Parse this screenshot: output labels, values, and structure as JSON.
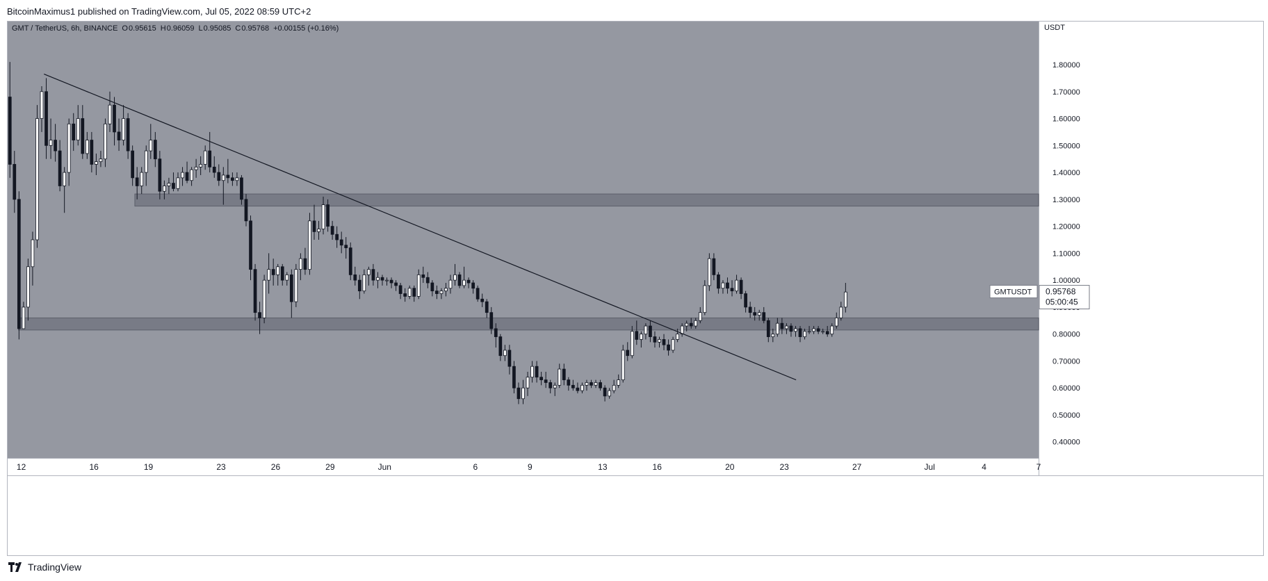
{
  "header": {
    "publisher_text": "BitcoinMaximus1 published on TradingView.com, Jul 05, 2022 08:59 UTC+2"
  },
  "footer": {
    "brand": "TradingView"
  },
  "colors": {
    "plot_bg": "#9598a1",
    "axis_bg": "#ffffff",
    "zone_fill": "#787b86",
    "candle_up_fill": "#ffffff",
    "candle_down_fill": "#131722",
    "wick": "#131722",
    "trendline": "#131722"
  },
  "chart_data": {
    "type": "candlestick",
    "symbol_info": "GMT / TetherUS, 6h, BINANCE",
    "ohlc_readout": {
      "O": "0.95615",
      "H": "0.96059",
      "L": "0.95085",
      "C": "0.95768",
      "change": "+0.00155 (+0.16%)"
    },
    "y_axis_unit": "USDT",
    "ylim": [
      0.34,
      1.96
    ],
    "y_ticks": [
      {
        "value": 1.8,
        "label": "1.80000"
      },
      {
        "value": 1.7,
        "label": "1.70000"
      },
      {
        "value": 1.6,
        "label": "1.60000"
      },
      {
        "value": 1.5,
        "label": "1.50000"
      },
      {
        "value": 1.4,
        "label": "1.40000"
      },
      {
        "value": 1.3,
        "label": "1.30000"
      },
      {
        "value": 1.2,
        "label": "1.20000"
      },
      {
        "value": 1.1,
        "label": "1.10000"
      },
      {
        "value": 1.0,
        "label": "1.00000"
      },
      {
        "value": 0.9,
        "label": "0.90000"
      },
      {
        "value": 0.8,
        "label": "0.80000"
      },
      {
        "value": 0.7,
        "label": "0.70000"
      },
      {
        "value": 0.6,
        "label": "0.60000"
      },
      {
        "value": 0.5,
        "label": "0.50000"
      },
      {
        "value": 0.4,
        "label": "0.40000"
      }
    ],
    "xlim_days": [
      0,
      56.75
    ],
    "x_ticks": [
      {
        "day": 0.75,
        "label": "12"
      },
      {
        "day": 4.75,
        "label": "16"
      },
      {
        "day": 7.75,
        "label": "19"
      },
      {
        "day": 11.75,
        "label": "23"
      },
      {
        "day": 14.75,
        "label": "26"
      },
      {
        "day": 17.75,
        "label": "29"
      },
      {
        "day": 20.75,
        "label": "Jun"
      },
      {
        "day": 25.75,
        "label": "6"
      },
      {
        "day": 28.75,
        "label": "9"
      },
      {
        "day": 32.75,
        "label": "13"
      },
      {
        "day": 35.75,
        "label": "16"
      },
      {
        "day": 39.75,
        "label": "20"
      },
      {
        "day": 42.75,
        "label": "23"
      },
      {
        "day": 46.75,
        "label": "27"
      },
      {
        "day": 50.75,
        "label": "Jul"
      },
      {
        "day": 53.75,
        "label": "4"
      },
      {
        "day": 56.75,
        "label": "7"
      }
    ],
    "last_price": {
      "label": "GMTUSDT",
      "value": "0.95768",
      "countdown": "05:00:45"
    },
    "zones": [
      {
        "day_start": 7.0,
        "day_end": 56.75,
        "low": 1.275,
        "high": 1.32
      },
      {
        "day_start": 0.6,
        "day_end": 56.75,
        "low": 0.815,
        "high": 0.86
      }
    ],
    "trendline": [
      {
        "day": 2.0,
        "price": 1.765
      },
      {
        "day": 43.4,
        "price": 0.63
      }
    ],
    "candles": [
      [
        0,
        1.68,
        1.81,
        1.38,
        1.43
      ],
      [
        1,
        1.43,
        1.48,
        1.25,
        1.3
      ],
      [
        2,
        1.3,
        1.33,
        0.78,
        0.82
      ],
      [
        3,
        0.82,
        0.92,
        0.82,
        0.9
      ],
      [
        4,
        0.9,
        1.08,
        0.85,
        1.05
      ],
      [
        5,
        1.05,
        1.18,
        0.98,
        1.15
      ],
      [
        6,
        1.15,
        1.65,
        1.12,
        1.6
      ],
      [
        7,
        1.6,
        1.72,
        1.55,
        1.7
      ],
      [
        8,
        1.7,
        1.75,
        1.45,
        1.5
      ],
      [
        9,
        1.5,
        1.6,
        1.45,
        1.52
      ],
      [
        10,
        1.52,
        1.58,
        1.44,
        1.48
      ],
      [
        11,
        1.48,
        1.52,
        1.33,
        1.35
      ],
      [
        12,
        1.35,
        1.42,
        1.25,
        1.4
      ],
      [
        13,
        1.4,
        1.6,
        1.35,
        1.58
      ],
      [
        14,
        1.58,
        1.62,
        1.48,
        1.52
      ],
      [
        15,
        1.52,
        1.65,
        1.5,
        1.6
      ],
      [
        16,
        1.6,
        1.65,
        1.45,
        1.47
      ],
      [
        17,
        1.47,
        1.55,
        1.45,
        1.52
      ],
      [
        18,
        1.52,
        1.55,
        1.4,
        1.43
      ],
      [
        19,
        1.43,
        1.47,
        1.39,
        1.44
      ],
      [
        20,
        1.44,
        1.48,
        1.42,
        1.45
      ],
      [
        21,
        1.45,
        1.6,
        1.42,
        1.58
      ],
      [
        22,
        1.58,
        1.7,
        1.55,
        1.65
      ],
      [
        23,
        1.65,
        1.68,
        1.5,
        1.55
      ],
      [
        24,
        1.55,
        1.6,
        1.48,
        1.52
      ],
      [
        25,
        1.52,
        1.65,
        1.5,
        1.6
      ],
      [
        26,
        1.6,
        1.62,
        1.45,
        1.48
      ],
      [
        27,
        1.48,
        1.5,
        1.35,
        1.38
      ],
      [
        28,
        1.38,
        1.42,
        1.3,
        1.35
      ],
      [
        29,
        1.35,
        1.42,
        1.32,
        1.4
      ],
      [
        30,
        1.4,
        1.5,
        1.35,
        1.48
      ],
      [
        31,
        1.48,
        1.58,
        1.45,
        1.52
      ],
      [
        32,
        1.52,
        1.55,
        1.42,
        1.45
      ],
      [
        33,
        1.45,
        1.48,
        1.3,
        1.33
      ],
      [
        34,
        1.33,
        1.37,
        1.3,
        1.35
      ],
      [
        35,
        1.35,
        1.38,
        1.32,
        1.36
      ],
      [
        36,
        1.36,
        1.4,
        1.33,
        1.34
      ],
      [
        37,
        1.34,
        1.4,
        1.33,
        1.38
      ],
      [
        38,
        1.38,
        1.42,
        1.35,
        1.4
      ],
      [
        39,
        1.4,
        1.44,
        1.36,
        1.37
      ],
      [
        40,
        1.37,
        1.42,
        1.35,
        1.41
      ],
      [
        41,
        1.41,
        1.45,
        1.38,
        1.42
      ],
      [
        42,
        1.42,
        1.46,
        1.39,
        1.43
      ],
      [
        43,
        1.43,
        1.5,
        1.41,
        1.48
      ],
      [
        44,
        1.48,
        1.55,
        1.4,
        1.42
      ],
      [
        45,
        1.42,
        1.46,
        1.38,
        1.4
      ],
      [
        46,
        1.4,
        1.43,
        1.35,
        1.37
      ],
      [
        47,
        1.37,
        1.42,
        1.28,
        1.39
      ],
      [
        48,
        1.39,
        1.45,
        1.36,
        1.38
      ],
      [
        49,
        1.38,
        1.4,
        1.35,
        1.37
      ],
      [
        50,
        1.37,
        1.4,
        1.35,
        1.38
      ],
      [
        51,
        1.38,
        1.39,
        1.28,
        1.3
      ],
      [
        52,
        1.3,
        1.32,
        1.2,
        1.22
      ],
      [
        53,
        1.22,
        1.24,
        1.0,
        1.04
      ],
      [
        54,
        1.04,
        1.06,
        0.85,
        0.88
      ],
      [
        55,
        0.88,
        0.92,
        0.8,
        0.86
      ],
      [
        56,
        0.86,
        1.02,
        0.84,
        1.0
      ],
      [
        57,
        1.0,
        1.1,
        0.95,
        1.04
      ],
      [
        58,
        1.04,
        1.08,
        0.98,
        1.02
      ],
      [
        59,
        1.02,
        1.06,
        0.98,
        1.05
      ],
      [
        60,
        1.05,
        1.06,
        0.98,
        1.0
      ],
      [
        61,
        1.0,
        1.03,
        0.98,
        1.02
      ],
      [
        62,
        1.02,
        1.04,
        0.86,
        0.92
      ],
      [
        63,
        0.92,
        1.06,
        0.9,
        1.04
      ],
      [
        64,
        1.04,
        1.1,
        1.0,
        1.08
      ],
      [
        65,
        1.08,
        1.12,
        1.02,
        1.04
      ],
      [
        66,
        1.04,
        1.25,
        1.02,
        1.22
      ],
      [
        67,
        1.22,
        1.28,
        1.15,
        1.18
      ],
      [
        68,
        1.18,
        1.22,
        1.15,
        1.19
      ],
      [
        69,
        1.19,
        1.31,
        1.17,
        1.28
      ],
      [
        70,
        1.28,
        1.3,
        1.18,
        1.2
      ],
      [
        71,
        1.2,
        1.22,
        1.15,
        1.17
      ],
      [
        72,
        1.17,
        1.2,
        1.12,
        1.15
      ],
      [
        73,
        1.15,
        1.18,
        1.1,
        1.13
      ],
      [
        74,
        1.13,
        1.16,
        1.08,
        1.12
      ],
      [
        75,
        1.12,
        1.14,
        1.0,
        1.02
      ],
      [
        76,
        1.02,
        1.05,
        0.98,
        1.0
      ],
      [
        77,
        1.0,
        1.02,
        0.93,
        0.96
      ],
      [
        78,
        0.96,
        1.04,
        0.95,
        1.02
      ],
      [
        79,
        1.02,
        1.05,
        0.98,
        1.04
      ],
      [
        80,
        1.04,
        1.06,
        0.98,
        1.0
      ],
      [
        81,
        1.0,
        1.03,
        0.97,
        1.01
      ],
      [
        82,
        1.01,
        1.02,
        0.98,
        1.0
      ],
      [
        83,
        1.0,
        1.01,
        0.98,
        1.0
      ],
      [
        84,
        1.0,
        1.01,
        0.97,
        0.99
      ],
      [
        85,
        0.99,
        1.0,
        0.96,
        0.98
      ],
      [
        86,
        0.98,
        0.99,
        0.93,
        0.95
      ],
      [
        87,
        0.95,
        0.97,
        0.92,
        0.94
      ],
      [
        88,
        0.94,
        0.98,
        0.93,
        0.97
      ],
      [
        89,
        0.97,
        0.98,
        0.92,
        0.94
      ],
      [
        90,
        0.94,
        1.04,
        0.93,
        1.02
      ],
      [
        91,
        1.02,
        1.05,
        0.99,
        1.01
      ],
      [
        92,
        1.01,
        1.03,
        0.97,
        0.99
      ],
      [
        93,
        0.99,
        1.0,
        0.94,
        0.96
      ],
      [
        94,
        0.96,
        0.98,
        0.93,
        0.95
      ],
      [
        95,
        0.95,
        0.97,
        0.93,
        0.96
      ],
      [
        96,
        0.96,
        0.99,
        0.94,
        0.97
      ],
      [
        97,
        0.97,
        1.02,
        0.95,
        1.0
      ],
      [
        98,
        1.0,
        1.06,
        0.98,
        1.02
      ],
      [
        99,
        1.02,
        1.03,
        0.97,
        0.98
      ],
      [
        100,
        0.98,
        1.05,
        0.97,
        1.0
      ],
      [
        101,
        1.0,
        1.01,
        0.97,
        0.99
      ],
      [
        102,
        0.99,
        1.0,
        0.95,
        0.97
      ],
      [
        103,
        0.97,
        0.98,
        0.92,
        0.93
      ],
      [
        104,
        0.93,
        0.95,
        0.9,
        0.92
      ],
      [
        105,
        0.92,
        0.93,
        0.86,
        0.88
      ],
      [
        106,
        0.88,
        0.9,
        0.8,
        0.82
      ],
      [
        107,
        0.82,
        0.84,
        0.75,
        0.79
      ],
      [
        108,
        0.79,
        0.8,
        0.7,
        0.72
      ],
      [
        109,
        0.72,
        0.76,
        0.7,
        0.74
      ],
      [
        110,
        0.74,
        0.76,
        0.65,
        0.68
      ],
      [
        111,
        0.68,
        0.7,
        0.58,
        0.6
      ],
      [
        112,
        0.6,
        0.62,
        0.54,
        0.56
      ],
      [
        113,
        0.56,
        0.63,
        0.54,
        0.6
      ],
      [
        114,
        0.6,
        0.66,
        0.57,
        0.64
      ],
      [
        115,
        0.64,
        0.7,
        0.62,
        0.68
      ],
      [
        116,
        0.68,
        0.7,
        0.62,
        0.64
      ],
      [
        117,
        0.64,
        0.66,
        0.61,
        0.63
      ],
      [
        118,
        0.63,
        0.66,
        0.6,
        0.62
      ],
      [
        119,
        0.62,
        0.63,
        0.58,
        0.6
      ],
      [
        120,
        0.6,
        0.62,
        0.57,
        0.61
      ],
      [
        121,
        0.61,
        0.69,
        0.6,
        0.67
      ],
      [
        122,
        0.67,
        0.69,
        0.61,
        0.63
      ],
      [
        123,
        0.63,
        0.64,
        0.59,
        0.61
      ],
      [
        124,
        0.61,
        0.63,
        0.59,
        0.6
      ],
      [
        125,
        0.6,
        0.62,
        0.58,
        0.59
      ],
      [
        126,
        0.59,
        0.62,
        0.58,
        0.61
      ],
      [
        127,
        0.61,
        0.63,
        0.59,
        0.62
      ],
      [
        128,
        0.62,
        0.63,
        0.6,
        0.61
      ],
      [
        129,
        0.61,
        0.63,
        0.6,
        0.62
      ],
      [
        130,
        0.62,
        0.63,
        0.59,
        0.6
      ],
      [
        131,
        0.6,
        0.61,
        0.55,
        0.57
      ],
      [
        132,
        0.57,
        0.6,
        0.56,
        0.59
      ],
      [
        133,
        0.59,
        0.63,
        0.58,
        0.61
      ],
      [
        134,
        0.61,
        0.65,
        0.6,
        0.63
      ],
      [
        135,
        0.63,
        0.76,
        0.62,
        0.74
      ],
      [
        136,
        0.74,
        0.77,
        0.7,
        0.72
      ],
      [
        137,
        0.72,
        0.83,
        0.71,
        0.81
      ],
      [
        138,
        0.81,
        0.85,
        0.76,
        0.78
      ],
      [
        139,
        0.78,
        0.81,
        0.75,
        0.8
      ],
      [
        140,
        0.8,
        0.84,
        0.78,
        0.83
      ],
      [
        141,
        0.83,
        0.85,
        0.77,
        0.79
      ],
      [
        142,
        0.79,
        0.81,
        0.75,
        0.77
      ],
      [
        143,
        0.77,
        0.79,
        0.75,
        0.78
      ],
      [
        144,
        0.78,
        0.8,
        0.74,
        0.76
      ],
      [
        145,
        0.76,
        0.78,
        0.72,
        0.74
      ],
      [
        146,
        0.74,
        0.79,
        0.73,
        0.78
      ],
      [
        147,
        0.78,
        0.82,
        0.77,
        0.8
      ],
      [
        148,
        0.8,
        0.84,
        0.79,
        0.83
      ],
      [
        149,
        0.83,
        0.85,
        0.81,
        0.84
      ],
      [
        150,
        0.84,
        0.86,
        0.82,
        0.83
      ],
      [
        151,
        0.83,
        0.86,
        0.82,
        0.85
      ],
      [
        152,
        0.85,
        0.9,
        0.84,
        0.88
      ],
      [
        153,
        0.88,
        1.0,
        0.87,
        0.98
      ],
      [
        154,
        0.98,
        1.1,
        0.96,
        1.08
      ],
      [
        155,
        1.08,
        1.1,
        1.0,
        1.02
      ],
      [
        156,
        1.02,
        1.03,
        0.95,
        0.97
      ],
      [
        157,
        0.97,
        1.0,
        0.95,
        0.99
      ],
      [
        158,
        0.99,
        1.01,
        0.95,
        0.97
      ],
      [
        159,
        0.97,
        1.0,
        0.94,
        0.96
      ],
      [
        160,
        0.96,
        1.02,
        0.95,
        1.0
      ],
      [
        161,
        1.0,
        1.01,
        0.93,
        0.95
      ],
      [
        162,
        0.95,
        0.96,
        0.88,
        0.9
      ],
      [
        163,
        0.9,
        0.92,
        0.86,
        0.88
      ],
      [
        164,
        0.88,
        0.9,
        0.85,
        0.87
      ],
      [
        165,
        0.87,
        0.89,
        0.85,
        0.88
      ],
      [
        166,
        0.88,
        0.9,
        0.84,
        0.85
      ],
      [
        167,
        0.85,
        0.86,
        0.77,
        0.79
      ],
      [
        168,
        0.79,
        0.82,
        0.77,
        0.8
      ],
      [
        169,
        0.8,
        0.86,
        0.79,
        0.84
      ],
      [
        170,
        0.84,
        0.86,
        0.8,
        0.82
      ],
      [
        171,
        0.82,
        0.84,
        0.8,
        0.83
      ],
      [
        172,
        0.83,
        0.84,
        0.79,
        0.81
      ],
      [
        173,
        0.81,
        0.83,
        0.79,
        0.82
      ],
      [
        174,
        0.82,
        0.83,
        0.77,
        0.79
      ],
      [
        175,
        0.79,
        0.82,
        0.78,
        0.81
      ],
      [
        176,
        0.81,
        0.83,
        0.8,
        0.81
      ],
      [
        177,
        0.81,
        0.83,
        0.8,
        0.82
      ],
      [
        178,
        0.82,
        0.83,
        0.8,
        0.81
      ],
      [
        179,
        0.81,
        0.82,
        0.8,
        0.81
      ],
      [
        180,
        0.81,
        0.83,
        0.79,
        0.8
      ],
      [
        181,
        0.8,
        0.84,
        0.79,
        0.83
      ],
      [
        182,
        0.83,
        0.88,
        0.82,
        0.86
      ],
      [
        183,
        0.86,
        0.92,
        0.85,
        0.9
      ],
      [
        184,
        0.9,
        0.99,
        0.88,
        0.956
      ]
    ]
  }
}
